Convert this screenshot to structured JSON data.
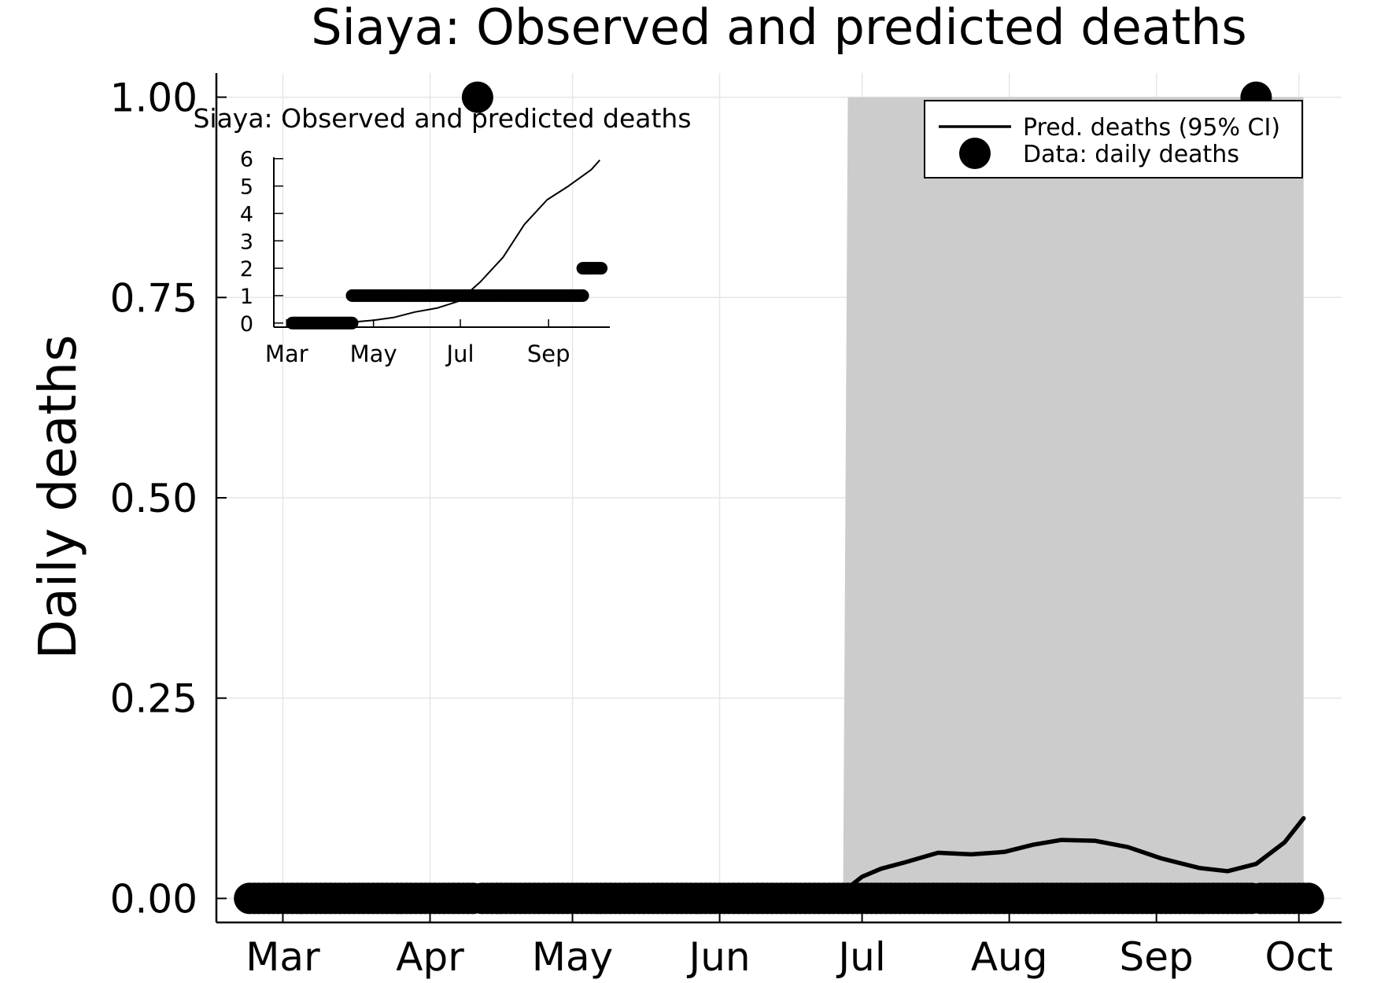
{
  "chart_data": [
    {
      "type": "line",
      "title": "Siaya: Observed and predicted deaths",
      "xlabel": "",
      "ylabel": "Daily deaths",
      "x_ticks": [
        {
          "date": "2020-03-01",
          "label": "Mar"
        },
        {
          "date": "2020-04-01",
          "label": "Apr"
        },
        {
          "date": "2020-05-01",
          "label": "May"
        },
        {
          "date": "2020-06-01",
          "label": "Jun"
        },
        {
          "date": "2020-07-01",
          "label": "Jul"
        },
        {
          "date": "2020-08-01",
          "label": "Aug"
        },
        {
          "date": "2020-09-01",
          "label": "Sep"
        },
        {
          "date": "2020-10-01",
          "label": "Oct"
        }
      ],
      "y_ticks": [
        {
          "value": 0,
          "label": "0.00"
        },
        {
          "value": 0.25,
          "label": "0.25"
        },
        {
          "value": 0.5,
          "label": "0.50"
        },
        {
          "value": 0.75,
          "label": "0.75"
        },
        {
          "value": 1,
          "label": "1.00"
        }
      ],
      "xlim": [
        "2020-02-16",
        "2020-10-10"
      ],
      "ylim": [
        -0.03,
        1.03
      ],
      "grid": true,
      "legend_position": "top-right",
      "legend": [
        {
          "label": "Pred. deaths (95% CI)",
          "kind": "line"
        },
        {
          "label": "Data: daily deaths",
          "kind": "marker"
        }
      ],
      "series": [
        {
          "name": "Pred. deaths (95% CI)",
          "kind": "line",
          "color": "#000000",
          "x": [
            "2020-02-23",
            "2020-03-15",
            "2020-04-15",
            "2020-05-15",
            "2020-06-15",
            "2020-06-26",
            "2020-06-28",
            "2020-07-01",
            "2020-07-05",
            "2020-07-10",
            "2020-07-17",
            "2020-07-24",
            "2020-07-31",
            "2020-08-06",
            "2020-08-12",
            "2020-08-19",
            "2020-08-26",
            "2020-09-02",
            "2020-09-10",
            "2020-09-16",
            "2020-09-22",
            "2020-09-28",
            "2020-10-02"
          ],
          "y": [
            0,
            0,
            0,
            0,
            0.001,
            0.006,
            0.013,
            0.027,
            0.037,
            0.045,
            0.057,
            0.055,
            0.058,
            0.067,
            0.073,
            0.072,
            0.064,
            0.05,
            0.038,
            0.034,
            0.043,
            0.07,
            0.1
          ]
        },
        {
          "name": "95% CI",
          "kind": "band",
          "color": "#cccccc",
          "x": [
            "2020-06-27",
            "2020-06-28",
            "2020-10-02"
          ],
          "lower": [
            0,
            0,
            0
          ],
          "upper": [
            0,
            1,
            1
          ]
        },
        {
          "name": "Data: daily deaths",
          "kind": "scatter",
          "color": "#000000",
          "daily_range": [
            "2020-02-23",
            "2020-10-03"
          ],
          "value_default": 0,
          "exceptions": [
            {
              "x": "2020-04-11",
              "y": 1
            },
            {
              "x": "2020-09-22",
              "y": 1
            }
          ]
        }
      ]
    },
    {
      "type": "line",
      "title": "Siaya: Observed and predicted deaths",
      "inset": true,
      "x_ticks": [
        {
          "date": "2020-03-01",
          "label": "Mar"
        },
        {
          "date": "2020-05-01",
          "label": "May"
        },
        {
          "date": "2020-07-01",
          "label": "Jul"
        },
        {
          "date": "2020-09-01",
          "label": "Sep"
        }
      ],
      "y_ticks": [
        {
          "value": 0,
          "label": "0"
        },
        {
          "value": 1,
          "label": "1"
        },
        {
          "value": 2,
          "label": "2"
        },
        {
          "value": 3,
          "label": "3"
        },
        {
          "value": 4,
          "label": "4"
        },
        {
          "value": 5,
          "label": "5"
        },
        {
          "value": 6,
          "label": "6"
        }
      ],
      "xlim": [
        "2020-02-21",
        "2020-10-14"
      ],
      "ylim": [
        -0.15,
        6.05
      ],
      "grid": false,
      "series": [
        {
          "name": "Pred. deaths",
          "kind": "line",
          "color": "#000000",
          "x": [
            "2020-03-01",
            "2020-04-20",
            "2020-05-01",
            "2020-05-15",
            "2020-05-30",
            "2020-06-15",
            "2020-06-30",
            "2020-07-15",
            "2020-07-31",
            "2020-08-15",
            "2020-08-31",
            "2020-09-15",
            "2020-10-01",
            "2020-10-07"
          ],
          "y": [
            0,
            0.05,
            0.1,
            0.2,
            0.4,
            0.55,
            0.8,
            1.5,
            2.4,
            3.6,
            4.5,
            5.0,
            5.6,
            5.95
          ]
        },
        {
          "name": "Data",
          "kind": "scatter",
          "color": "#000000",
          "segments": [
            {
              "from": "2020-03-05",
              "to": "2020-04-16",
              "y": 0
            },
            {
              "from": "2020-04-16",
              "to": "2020-09-25",
              "y": 1
            },
            {
              "from": "2020-09-25",
              "to": "2020-10-08",
              "y": 2
            }
          ]
        }
      ]
    }
  ]
}
